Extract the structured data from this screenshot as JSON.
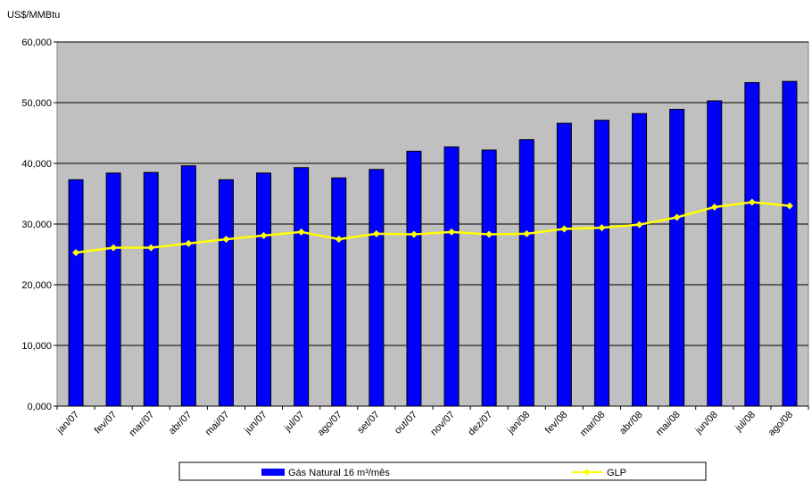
{
  "chart_data": {
    "type": "bar",
    "ylabel": "US$/MMBtu",
    "ylim": [
      0,
      60000
    ],
    "yticks": [
      0,
      10000,
      20000,
      30000,
      40000,
      50000,
      60000
    ],
    "ytick_labels": [
      "0,000",
      "10,000",
      "20,000",
      "30,000",
      "40,000",
      "50,000",
      "60,000"
    ],
    "categories": [
      "jan/07",
      "fev/07",
      "mar/07",
      "abr/07",
      "mai/07",
      "jun/07",
      "jul/07",
      "ago/07",
      "set/07",
      "out/07",
      "nov/07",
      "dez/07",
      "jan/08",
      "fev/08",
      "mar/08",
      "abr/08",
      "mai/08",
      "jun/08",
      "jul/08",
      "ago/08"
    ],
    "series": [
      {
        "name": "Gás Natural 16 m³/mês",
        "type": "bar",
        "color": "#0000FF",
        "values": [
          37300,
          38400,
          38500,
          39600,
          37300,
          38400,
          39300,
          37600,
          39000,
          42000,
          42700,
          42200,
          43900,
          46600,
          47100,
          48200,
          48900,
          50300,
          53300,
          53500
        ]
      },
      {
        "name": "GLP",
        "type": "line",
        "color": "#FFFF00",
        "values": [
          25300,
          26100,
          26100,
          26800,
          27500,
          28100,
          28700,
          27500,
          28400,
          28300,
          28700,
          28300,
          28400,
          29200,
          29400,
          29900,
          31100,
          32800,
          33600,
          33000
        ]
      }
    ],
    "grid": true,
    "legend_position": "bottom",
    "plot_background": "#C0C0C0"
  }
}
